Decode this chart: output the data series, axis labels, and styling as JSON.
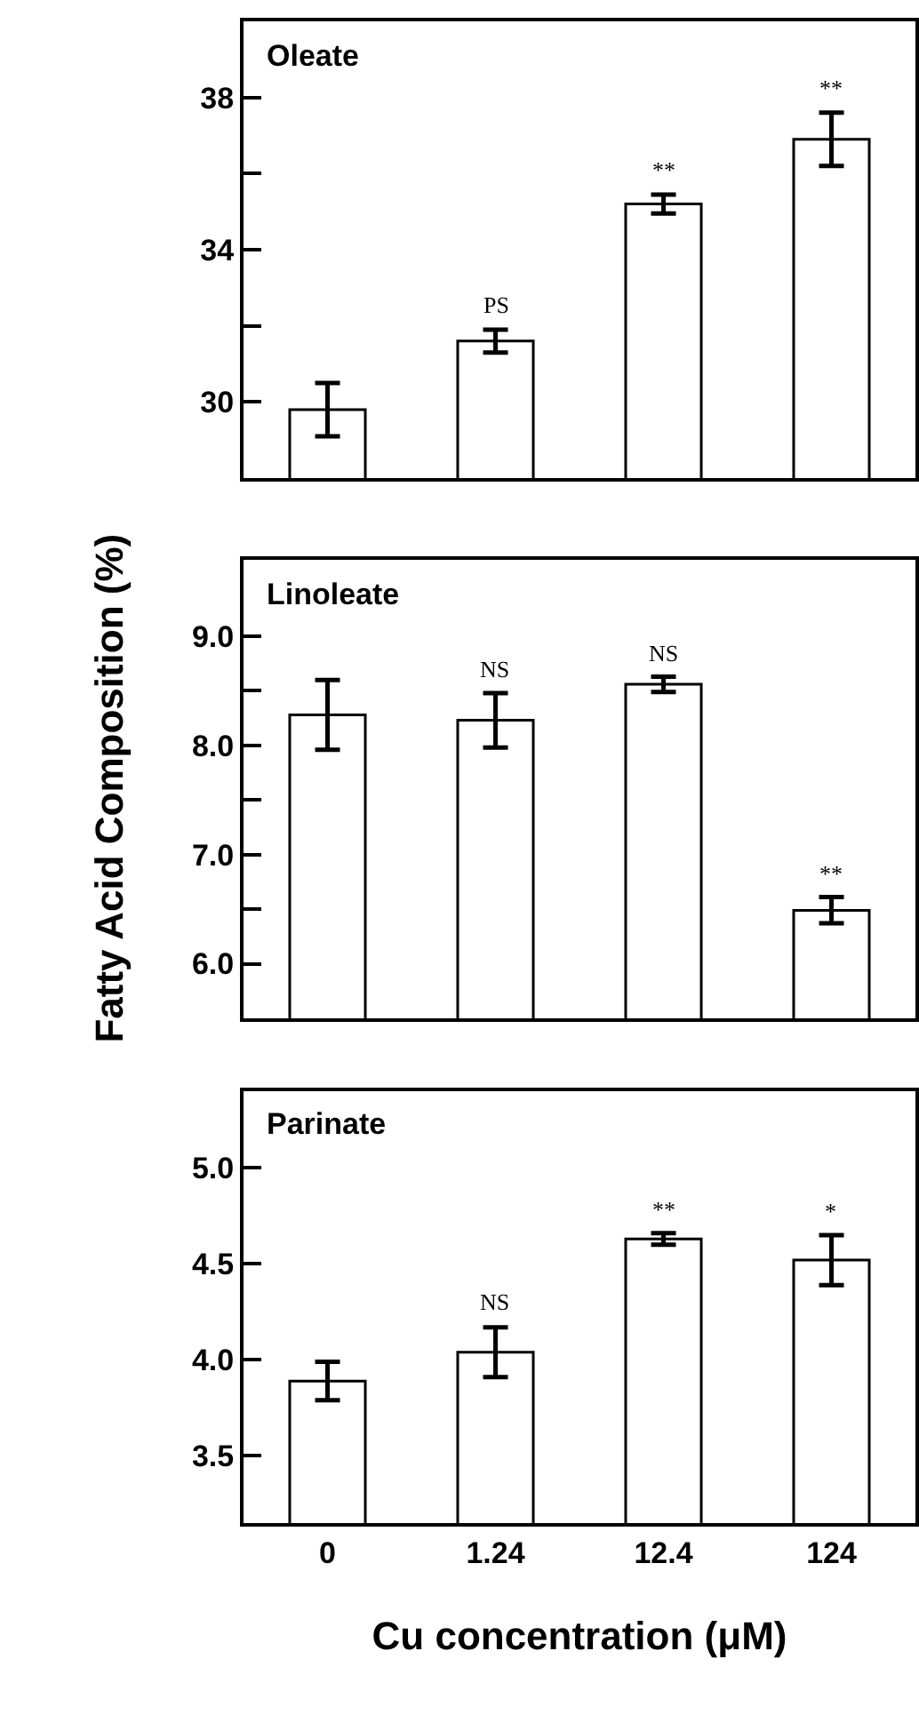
{
  "chart_data": [
    {
      "type": "bar",
      "title": "Oleate",
      "categories": [
        "0",
        "1.24",
        "12.4",
        "124"
      ],
      "values": [
        29.8,
        31.6,
        35.2,
        36.9
      ],
      "errors": [
        0.7,
        0.3,
        0.25,
        0.7
      ],
      "color": "#ffffff",
      "ylim": [
        28,
        40
      ],
      "yticks": [
        30,
        {
          "value": 32,
          "label": null
        },
        34,
        {
          "value": 36,
          "label": null
        },
        38
      ],
      "tick_labels": "y",
      "annotations": [
        {
          "text": "PS",
          "x": "1.24",
          "y": 31.9
        },
        {
          "text": "**",
          "x": "12.4",
          "y": 35.45
        },
        {
          "text": "**",
          "x": "124",
          "y": 37.6
        }
      ]
    },
    {
      "type": "bar",
      "title": "Linoleate",
      "ylabel": "Fatty Acid Composition (%)",
      "categories": [
        "0",
        "1.24",
        "12.4",
        "124"
      ],
      "values": [
        8.28,
        8.23,
        8.56,
        6.49
      ],
      "errors": [
        0.32,
        0.25,
        0.07,
        0.12
      ],
      "color": "#ffffff",
      "ylim": [
        5.5,
        9.7
      ],
      "yticks": [
        {
          "value": 6.0,
          "label": "6.0"
        },
        {
          "value": 6.5,
          "label": null
        },
        {
          "value": 7.0,
          "label": "7.0"
        },
        {
          "value": 7.5,
          "label": null
        },
        {
          "value": 8.0,
          "label": "8.0"
        },
        {
          "value": 8.5,
          "label": null
        },
        {
          "value": 9.0,
          "label": "9.0"
        }
      ],
      "tick_labels": "y",
      "annotations": [
        {
          "text": "NS",
          "x": "1.24",
          "y": 8.48
        },
        {
          "text": "NS",
          "x": "12.4",
          "y": 8.63
        },
        {
          "text": "**",
          "x": "124",
          "y": 6.61
        }
      ]
    },
    {
      "type": "bar",
      "title": "Parinate",
      "xlabel": "Cu concentration (μM)",
      "categories": [
        "0",
        "1.24",
        "12.4",
        "124"
      ],
      "values": [
        3.89,
        4.04,
        4.63,
        4.52
      ],
      "errors": [
        0.1,
        0.13,
        0.03,
        0.13
      ],
      "color": "#ffffff",
      "ylim": [
        3.15,
        5.4
      ],
      "yticks": [
        3.5,
        {
          "value": 4.0,
          "label": "4.0"
        },
        4.5,
        {
          "value": 5.0,
          "label": "5.0"
        }
      ],
      "annotations": [
        {
          "text": "NS",
          "x": "1.24",
          "y": 4.18
        },
        {
          "text": "**",
          "x": "12.4",
          "y": 4.66
        },
        {
          "text": "*",
          "x": "124",
          "y": 4.65
        }
      ]
    }
  ]
}
